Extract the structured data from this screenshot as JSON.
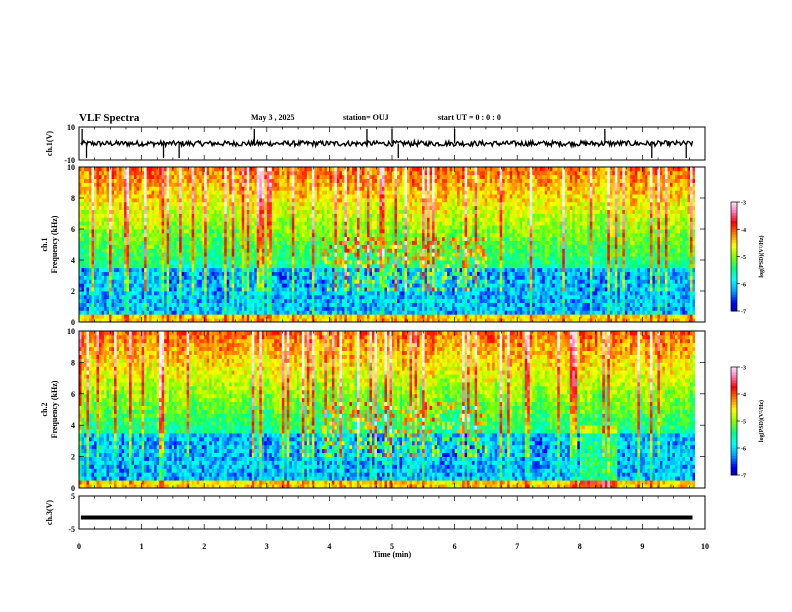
{
  "header": {
    "title": "VLF Spectra",
    "date": "May 3  , 2025",
    "station": "station= OUJ",
    "start": "start  UT =   0  : 0  : 0"
  },
  "colors": {
    "colormap": [
      "#00008b",
      "#0000ff",
      "#00a0ff",
      "#00ffff",
      "#00ff80",
      "#80ff00",
      "#ffff00",
      "#ff8000",
      "#ff0000",
      "#ff80c0",
      "#ffffff"
    ],
    "trace": "#000000",
    "axis": "#000000"
  },
  "chart_data": [
    {
      "type": "line",
      "panel": "ch1-waveform",
      "ylabel": "ch.1(V)",
      "ylim": [
        -10,
        10
      ],
      "yticks": [
        "10",
        "-10"
      ],
      "xlim": [
        0,
        10
      ],
      "spikes_min": [
        0.05,
        0.12,
        1.35,
        1.6,
        2.8,
        4.6,
        5.0,
        5.1,
        6.0,
        8.4,
        9.15,
        9.7
      ],
      "baseline": 0
    },
    {
      "type": "heatmap",
      "panel": "ch1-spectrogram",
      "ylabel": "ch.1\nFrequency (kHz)",
      "ylim": [
        0,
        10
      ],
      "yticks": [
        "0",
        "2",
        "4",
        "6",
        "8",
        "10"
      ],
      "xlim": [
        0,
        10
      ],
      "colorbar": {
        "label": "log(PSD)(V²/Hz)",
        "range": [
          -7,
          -3
        ],
        "ticks": [
          "-3",
          "-4",
          "-5",
          "-6",
          "-7"
        ]
      },
      "event_window_min": [
        3.9,
        6.5
      ],
      "quiet_band_khz": [
        1,
        3.5
      ]
    },
    {
      "type": "heatmap",
      "panel": "ch2-spectrogram",
      "ylabel": "ch.2\nFrequency (kHz)",
      "ylim": [
        0,
        10
      ],
      "yticks": [
        "0",
        "2",
        "4",
        "6",
        "8",
        "10"
      ],
      "xlim": [
        0,
        10
      ],
      "colorbar": {
        "label": "log(PSD)(V²/Hz)",
        "range": [
          -7,
          -3
        ],
        "ticks": [
          "-3",
          "-4",
          "-5",
          "-6",
          "-7"
        ]
      },
      "event_window_min": [
        3.9,
        6.5
      ],
      "quiet_band_khz": [
        1,
        3.5
      ]
    },
    {
      "type": "line",
      "panel": "ch3-waveform",
      "ylabel": "ch.3(V)",
      "ylim": [
        -5,
        5
      ],
      "yticks": [
        "5",
        "-5"
      ],
      "xlim": [
        0,
        10
      ],
      "values_const": -1.5,
      "xlabel": "Time  (min)",
      "xticks": [
        "0",
        "1",
        "2",
        "3",
        "4",
        "5",
        "6",
        "7",
        "8",
        "9",
        "10"
      ]
    }
  ]
}
